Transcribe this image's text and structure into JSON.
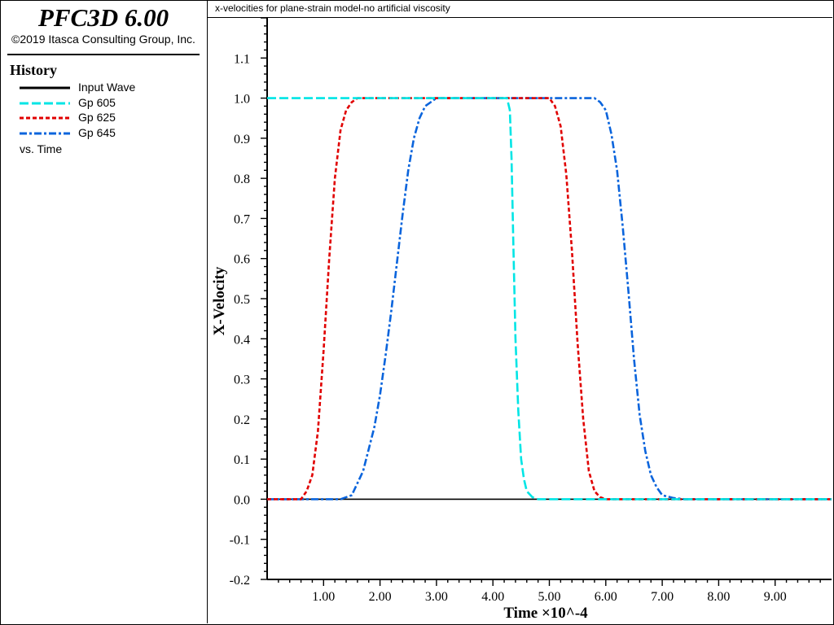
{
  "app": {
    "title": "PFC3D 6.00",
    "copyright": "©2019 Itasca Consulting Group, Inc."
  },
  "legend": {
    "heading": "History",
    "items": [
      {
        "label": "Input Wave",
        "color": "#000000",
        "style": "solid"
      },
      {
        "label": "Gp 605",
        "color": "#00e5e5",
        "style": "long-dash"
      },
      {
        "label": "Gp 625",
        "color": "#e00000",
        "style": "dash"
      },
      {
        "label": "Gp 645",
        "color": "#0a64dc",
        "style": "dash-dot"
      }
    ],
    "footer": "vs. Time"
  },
  "chart_data": {
    "type": "line",
    "title": "x-velocities for plane-strain model-no artificial viscosity",
    "xlabel": "Time ×10^-4",
    "ylabel": "X-Velocity",
    "xlim": [
      0,
      10
    ],
    "ylim": [
      -0.2,
      1.2
    ],
    "x_ticks": [
      "1.00",
      "2.00",
      "3.00",
      "4.00",
      "5.00",
      "6.00",
      "7.00",
      "8.00",
      "9.00"
    ],
    "y_ticks": [
      "-0.2",
      "-0.1",
      "0.0",
      "0.1",
      "0.2",
      "0.3",
      "0.4",
      "0.5",
      "0.6",
      "0.7",
      "0.8",
      "0.9",
      "1.0",
      "1.1"
    ],
    "grid": false,
    "series": [
      {
        "name": "Input Wave",
        "x": [
          0,
          10
        ],
        "y": [
          0,
          0
        ]
      },
      {
        "name": "Gp 605",
        "x": [
          0,
          4.25,
          4.3,
          4.33,
          4.36,
          4.4,
          4.45,
          4.5,
          4.55,
          4.6,
          4.7,
          4.8,
          5.0,
          10
        ],
        "y": [
          1.0,
          1.0,
          0.97,
          0.85,
          0.65,
          0.4,
          0.22,
          0.1,
          0.05,
          0.02,
          0.005,
          0.0,
          0.0,
          0.0
        ]
      },
      {
        "name": "Gp 625",
        "x": [
          0,
          0.6,
          0.7,
          0.8,
          0.9,
          1.0,
          1.1,
          1.2,
          1.3,
          1.4,
          1.5,
          1.6,
          1.7,
          1.8,
          2.0,
          5.0,
          5.1,
          5.2,
          5.3,
          5.4,
          5.5,
          5.6,
          5.7,
          5.8,
          5.9,
          6.0,
          6.1,
          6.2,
          6.4,
          10
        ],
        "y": [
          0,
          0,
          0.02,
          0.06,
          0.17,
          0.37,
          0.6,
          0.8,
          0.92,
          0.97,
          0.99,
          1.0,
          1.0,
          1.0,
          1.0,
          1.0,
          0.98,
          0.93,
          0.81,
          0.62,
          0.39,
          0.2,
          0.07,
          0.02,
          0.005,
          0.0,
          0.0,
          0.0,
          0.0,
          0.0
        ]
      },
      {
        "name": "Gp 645",
        "x": [
          0,
          1.3,
          1.5,
          1.7,
          1.9,
          2.0,
          2.1,
          2.2,
          2.3,
          2.4,
          2.5,
          2.6,
          2.7,
          2.8,
          2.9,
          3.0,
          3.2,
          5.8,
          5.9,
          6.0,
          6.1,
          6.2,
          6.3,
          6.4,
          6.5,
          6.6,
          6.7,
          6.8,
          6.9,
          7.0,
          7.2,
          7.4,
          7.6,
          10
        ],
        "y": [
          0,
          0,
          0.01,
          0.07,
          0.18,
          0.26,
          0.36,
          0.47,
          0.59,
          0.71,
          0.82,
          0.9,
          0.95,
          0.98,
          0.99,
          1.0,
          1.0,
          1.0,
          0.99,
          0.97,
          0.91,
          0.82,
          0.68,
          0.52,
          0.35,
          0.21,
          0.12,
          0.06,
          0.03,
          0.01,
          0.003,
          0.0,
          0.0,
          0.0
        ]
      }
    ]
  }
}
